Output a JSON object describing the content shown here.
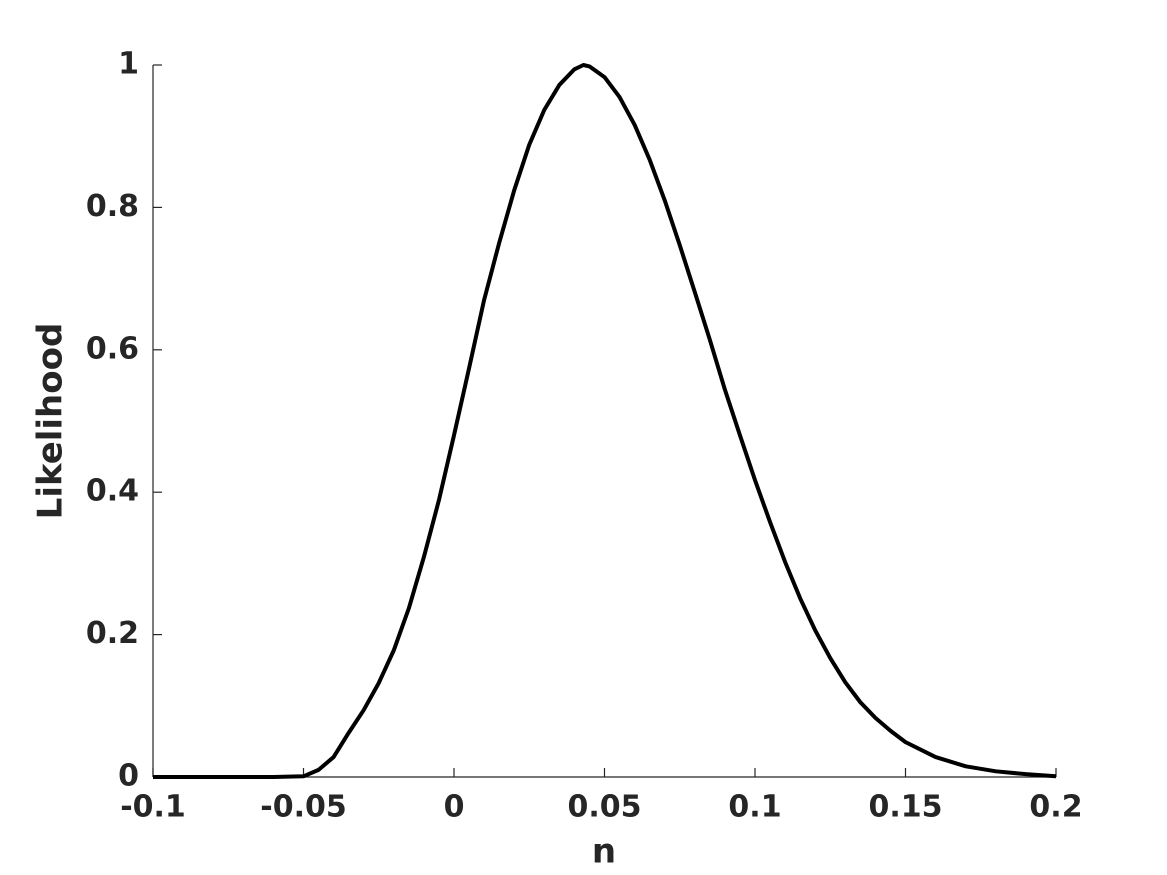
{
  "chart_data": {
    "type": "line",
    "xlabel": "n",
    "ylabel": "Likelihood",
    "x": [
      -0.1,
      -0.06,
      -0.05,
      -0.045,
      -0.04,
      -0.035,
      -0.03,
      -0.025,
      -0.02,
      -0.015,
      -0.01,
      -0.005,
      0,
      0.005,
      0.01,
      0.015,
      0.02,
      0.025,
      0.03,
      0.035,
      0.04,
      0.043,
      0.045,
      0.05,
      0.055,
      0.06,
      0.065,
      0.07,
      0.075,
      0.08,
      0.085,
      0.09,
      0.095,
      0.1,
      0.105,
      0.11,
      0.115,
      0.12,
      0.125,
      0.13,
      0.135,
      0.14,
      0.145,
      0.15,
      0.16,
      0.17,
      0.18,
      0.19,
      0.2
    ],
    "series": [
      {
        "color": "#000000",
        "values": [
          0,
          0,
          0.001,
          0.01,
          0.028,
          0.062,
          0.094,
          0.132,
          0.178,
          0.237,
          0.309,
          0.389,
          0.48,
          0.574,
          0.67,
          0.75,
          0.824,
          0.888,
          0.937,
          0.972,
          0.994,
          1.0,
          0.998,
          0.983,
          0.955,
          0.916,
          0.867,
          0.81,
          0.747,
          0.681,
          0.614,
          0.544,
          0.48,
          0.417,
          0.358,
          0.302,
          0.251,
          0.206,
          0.167,
          0.133,
          0.105,
          0.083,
          0.065,
          0.049,
          0.028,
          0.015,
          0.008,
          0.004,
          0.001
        ]
      }
    ],
    "xlim": [
      -0.1,
      0.2
    ],
    "xticks": [
      -0.1,
      -0.05,
      0,
      0.05,
      0.1,
      0.15,
      0.2
    ],
    "ylim": [
      0,
      1
    ],
    "yticks": [
      0,
      0.2,
      0.4,
      0.6,
      0.8,
      1
    ],
    "grid": false
  }
}
